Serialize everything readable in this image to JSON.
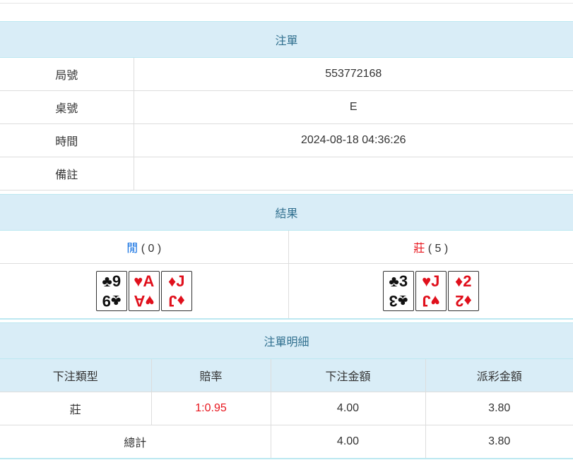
{
  "order": {
    "title": "注單",
    "rows": [
      {
        "label": "局號",
        "value": "553772168"
      },
      {
        "label": "桌號",
        "value": "E"
      },
      {
        "label": "時間",
        "value": "2024-08-18 04:36:26"
      },
      {
        "label": "備註",
        "value": ""
      }
    ]
  },
  "result": {
    "title": "結果",
    "player": {
      "label": "閒",
      "score": "( 0 )",
      "color": "#0a6be0",
      "cards": [
        {
          "rank": "9",
          "suit": "♣",
          "color": "black"
        },
        {
          "rank": "A",
          "suit": "♥",
          "color": "red"
        },
        {
          "rank": "J",
          "suit": "♦",
          "color": "red"
        }
      ]
    },
    "banker": {
      "label": "莊",
      "score": "( 5 )",
      "color": "#e8141c",
      "cards": [
        {
          "rank": "3",
          "suit": "♣",
          "color": "black"
        },
        {
          "rank": "J",
          "suit": "♥",
          "color": "red"
        },
        {
          "rank": "2",
          "suit": "♦",
          "color": "red"
        }
      ]
    }
  },
  "details": {
    "title": "注單明細",
    "headers": [
      "下注類型",
      "賠率",
      "下注金額",
      "派彩金額"
    ],
    "rows": [
      {
        "type": "莊",
        "odds": "1:0.95",
        "bet": "4.00",
        "payout": "3.80"
      }
    ],
    "total": {
      "label": "總計",
      "bet": "4.00",
      "payout": "3.80"
    }
  },
  "colors": {
    "header_bg": "#d9edf7",
    "header_text": "#31708f",
    "odds": "#e8141c"
  }
}
